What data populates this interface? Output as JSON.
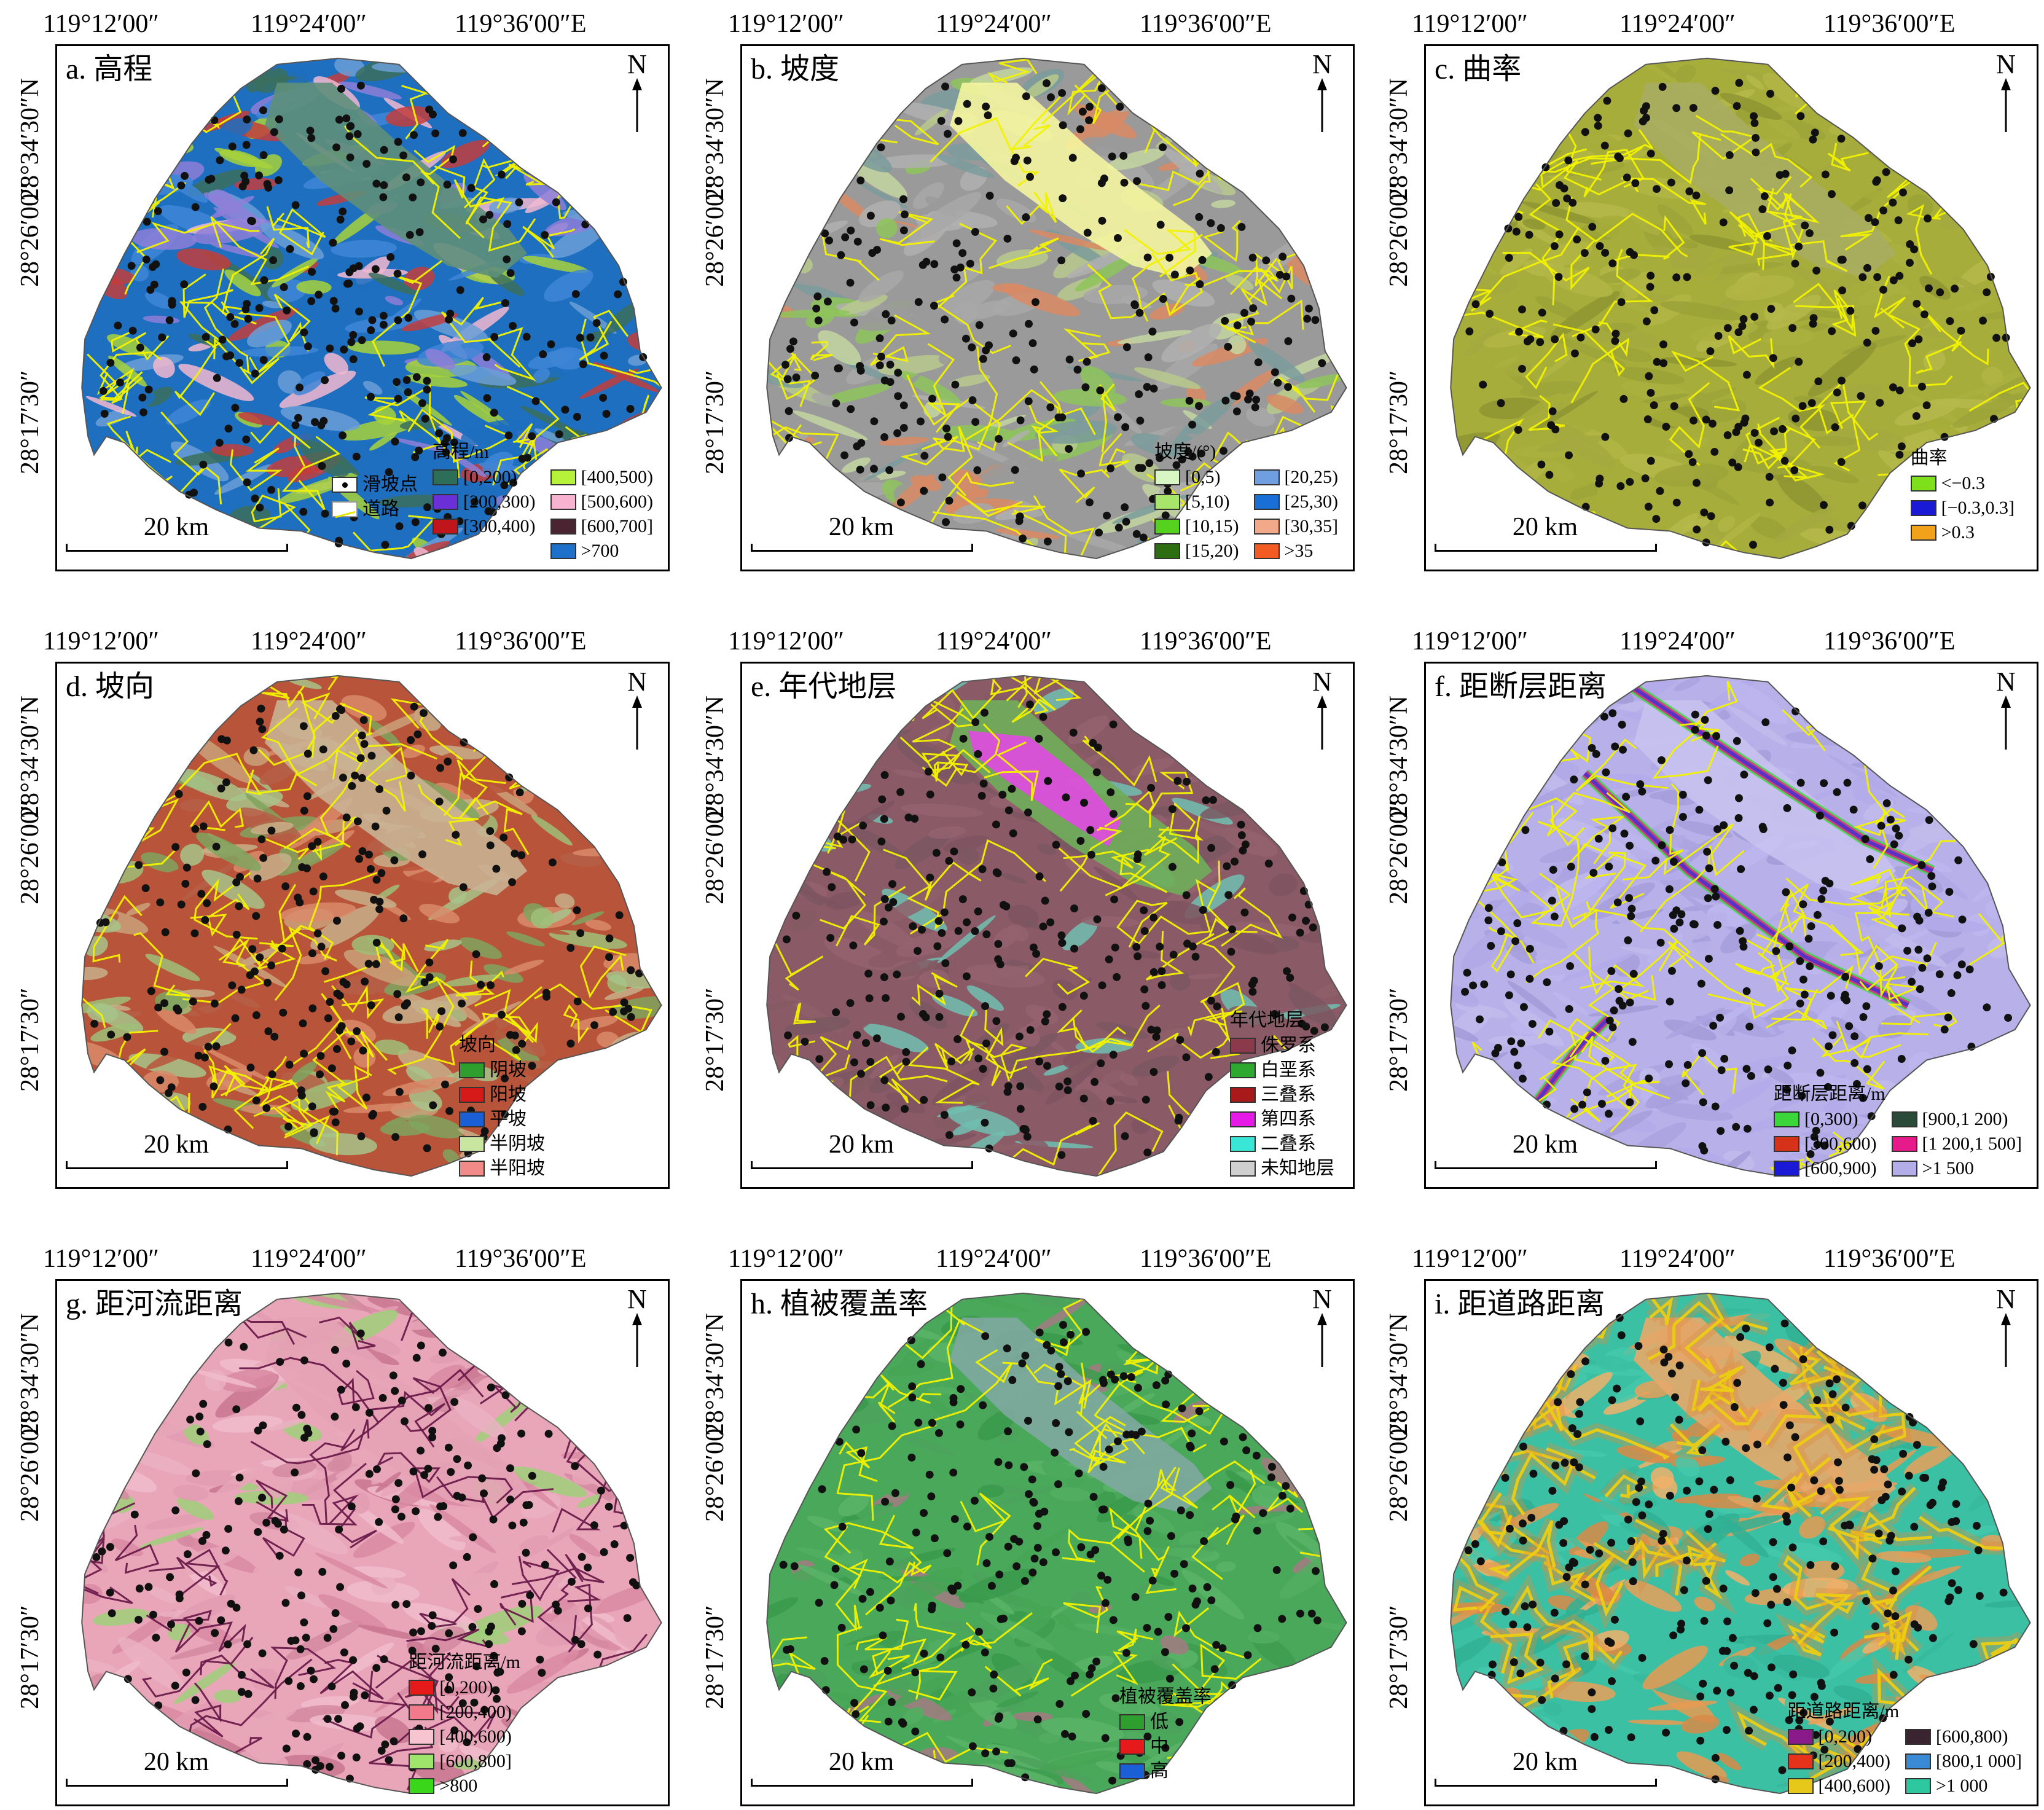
{
  "lon_labels": [
    "119°12′00″",
    "119°24′00″",
    "119°36′00″E"
  ],
  "lat_labels": [
    "28°34′30″N",
    "28°26′00″",
    "28°17′30″"
  ],
  "north_label": "N",
  "scale_label": "20 km",
  "colors": {
    "road": "#f2f200",
    "landslide": "#111111",
    "outline": "#555555"
  },
  "panels": [
    {
      "id": "a",
      "title": "a. 高程",
      "palette": [
        "#1e6fbf",
        "#3f86d6",
        "#8e7fd8",
        "#f2b8cf",
        "#a6d23a",
        "#3b6e5d",
        "#c23d3d",
        "#6a9fd6"
      ],
      "legend": {
        "title": "高程/m",
        "extra": [
          {
            "label": "滑坡点",
            "kind": "point"
          },
          {
            "label": "道路",
            "kind": "road"
          }
        ],
        "columns": [
          [
            {
              "label": "[0,200)",
              "color": "#2c6e57"
            },
            {
              "label": "[200,300)",
              "color": "#6a2fd6"
            },
            {
              "label": "[300,400)",
              "color": "#c0161b"
            }
          ],
          [
            {
              "label": "[400,500)",
              "color": "#b6f23a"
            },
            {
              "label": "[500,600)",
              "color": "#f7b3cf"
            },
            {
              "label": "[600,700]",
              "color": "#4a2430"
            },
            {
              "label": ">700",
              "color": "#1e70c8"
            }
          ]
        ]
      }
    },
    {
      "id": "b",
      "title": "b. 坡度",
      "palette": [
        "#9a9a9a",
        "#b7c98c",
        "#d98a63",
        "#8ec45a",
        "#a8a8a8",
        "#c4d6a0",
        "#7a9b9b",
        "#b0b0b0"
      ],
      "legend": {
        "title": "坡度/(°)",
        "extra": [],
        "columns": [
          [
            {
              "label": "[0,5)",
              "color": "#d8f5c4"
            },
            {
              "label": "[5,10)",
              "color": "#a8e66b"
            },
            {
              "label": "[10,15)",
              "color": "#55d21d"
            },
            {
              "label": "[15,20)",
              "color": "#2d6e12"
            }
          ],
          [
            {
              "label": "[20,25)",
              "color": "#6f9fe0"
            },
            {
              "label": "[25,30)",
              "color": "#1a6fd6"
            },
            {
              "label": "[30,35]",
              "color": "#f2a98a"
            },
            {
              "label": ">35",
              "color": "#f25c22"
            }
          ]
        ]
      }
    },
    {
      "id": "c",
      "title": "c. 曲率",
      "palette": [
        "#a7ad3a",
        "#9ea53a",
        "#b1b544",
        "#8e9533",
        "#a4a93f",
        "#b5b94b",
        "#9aa137",
        "#aab03f"
      ],
      "legend": {
        "title": "曲率",
        "extra": [],
        "columns": [
          [
            {
              "label": "<−0.3",
              "color": "#7ee01a"
            },
            {
              "label": "[−0.3,0.3]",
              "color": "#1a1ad6"
            },
            {
              "label": ">0.3",
              "color": "#f2a21a"
            }
          ]
        ]
      }
    },
    {
      "id": "d",
      "title": "d. 坡向",
      "palette": [
        "#b8543a",
        "#9fbf78",
        "#d98b6b",
        "#7fa45e",
        "#c9a27a",
        "#a7c48b",
        "#b46048",
        "#c7b08a"
      ],
      "legend": {
        "title": "坡向",
        "extra": [],
        "columns": [
          [
            {
              "label": "阴坡",
              "color": "#2e9e2e"
            },
            {
              "label": "阳坡",
              "color": "#d61a1a"
            },
            {
              "label": "平坡",
              "color": "#1a5fd6"
            },
            {
              "label": "半阴坡",
              "color": "#c8e6a0"
            },
            {
              "label": "半阳坡",
              "color": "#f28a8a"
            }
          ]
        ]
      }
    },
    {
      "id": "e",
      "title": "e. 年代地层",
      "palette": [
        "#8a5a66",
        "#7e5460",
        "#93636e",
        "#845a63",
        "#70c0b0",
        "#8b5b67",
        "#7a5862",
        "#8f606a"
      ],
      "legend": {
        "title": "年代地层",
        "extra": [],
        "columns": [
          [
            {
              "label": "侏罗系",
              "color": "#8a3a4a"
            },
            {
              "label": "白垩系",
              "color": "#2ea82e"
            },
            {
              "label": "三叠系",
              "color": "#a81a1a"
            },
            {
              "label": "第四系",
              "color": "#e61ae6"
            },
            {
              "label": "二叠系",
              "color": "#3ae6d6"
            },
            {
              "label": "未知地层",
              "color": "#cfcfcf"
            }
          ]
        ]
      }
    },
    {
      "id": "f",
      "title": "f. 距断层距离",
      "palette": [
        "#b8b0e8",
        "#aaa3e0",
        "#c1bbec",
        "#a69fdc",
        "#b3acea",
        "#bcb6ee",
        "#a29ad8",
        "#b0a9e6"
      ],
      "legend": {
        "title": "距断层距离/m",
        "extra": [],
        "columns": [
          [
            {
              "label": "[0,300)",
              "color": "#3ad63a"
            },
            {
              "label": "[300,600)",
              "color": "#d6321a"
            },
            {
              "label": "[600,900)",
              "color": "#1a1ad6"
            }
          ],
          [
            {
              "label": "[900,1 200)",
              "color": "#2a4a3a"
            },
            {
              "label": "[1 200,1 500]",
              "color": "#e61a8a"
            },
            {
              "label": ">1 500",
              "color": "#b4aee8"
            }
          ]
        ]
      }
    },
    {
      "id": "g",
      "title": "g. 距河流距离",
      "palette": [
        "#e8a6b8",
        "#d98aa2",
        "#f0bccb",
        "#c97591",
        "#e29cb1",
        "#9fd07a",
        "#eab0c2",
        "#d48aa0"
      ],
      "legend": {
        "title": "距河流距离/m",
        "extra": [],
        "columns": [
          [
            {
              "label": "[0,200)",
              "color": "#e61a1a"
            },
            {
              "label": "[200,400)",
              "color": "#f27a8a"
            },
            {
              "label": "[400,600)",
              "color": "#f7c4d0"
            },
            {
              "label": "[600,800]",
              "color": "#9ee66b"
            },
            {
              "label": ">800",
              "color": "#3ad61a"
            }
          ]
        ]
      }
    },
    {
      "id": "h",
      "title": "h. 植被覆盖率",
      "palette": [
        "#4aa85a",
        "#3e9c50",
        "#5bb468",
        "#a37a82",
        "#46a456",
        "#52ae60",
        "#3a9a4c",
        "#4ca25c"
      ],
      "legend": {
        "title": "植被覆盖率",
        "extra": [],
        "columns": [
          [
            {
              "label": "低",
              "color": "#2e9e2e"
            },
            {
              "label": "中",
              "color": "#e61a1a"
            },
            {
              "label": "高",
              "color": "#1a5fd6"
            }
          ]
        ]
      }
    },
    {
      "id": "i",
      "title": "i. 距道路距离",
      "palette": [
        "#3cc0a4",
        "#e8a05a",
        "#36b89c",
        "#d98a48",
        "#44c8ac",
        "#f0b06a",
        "#30b094",
        "#e89a52"
      ],
      "legend": {
        "title": "距道路距离/m",
        "extra": [],
        "columns": [
          [
            {
              "label": "[0,200)",
              "color": "#8a1a8a"
            },
            {
              "label": "[200,400)",
              "color": "#e6321a"
            },
            {
              "label": "[400,600)",
              "color": "#e6c81a"
            }
          ],
          [
            {
              "label": "[600,800)",
              "color": "#3a2430"
            },
            {
              "label": "[800,1 000]",
              "color": "#3a8ad6"
            },
            {
              "label": ">1 000",
              "color": "#2ec8a0"
            }
          ]
        ]
      }
    }
  ]
}
